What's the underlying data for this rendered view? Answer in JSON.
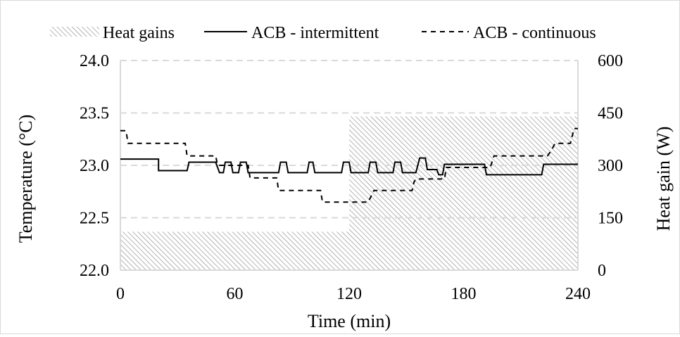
{
  "chart_data": {
    "type": "line",
    "legend_position": "top",
    "grid": "horizontal dashed",
    "x": {
      "label": "Time (min)",
      "range": [
        0,
        240
      ],
      "ticks": [
        "0",
        "60",
        "120",
        "180",
        "240"
      ],
      "tick_values": [
        0,
        60,
        120,
        180,
        240
      ]
    },
    "y_left": {
      "label": "Temperature (°C)",
      "range": [
        22.0,
        24.0
      ],
      "ticks": [
        "22.0",
        "22.5",
        "23.0",
        "23.5",
        "24.0"
      ],
      "tick_values": [
        22.0,
        22.5,
        23.0,
        23.5,
        24.0
      ]
    },
    "y_right": {
      "label": "Heat gain (W)",
      "range": [
        0,
        600
      ],
      "ticks": [
        "0",
        "150",
        "300",
        "450",
        "600"
      ],
      "tick_values": [
        0,
        150,
        300,
        450,
        600
      ]
    },
    "colors": {
      "gridline": "#d9d9d9",
      "hatch_line": "#8c8c8c",
      "series": "#000000"
    },
    "series": [
      {
        "name": "Heat gains",
        "style": "hatched-area",
        "axis": "right",
        "points": [
          [
            0,
            110
          ],
          [
            120,
            110
          ],
          [
            120,
            440
          ],
          [
            240,
            440
          ]
        ]
      },
      {
        "name": "ACB - intermittent",
        "style": "solid",
        "axis": "left",
        "points": [
          [
            0,
            23.06
          ],
          [
            20,
            23.06
          ],
          [
            20,
            22.95
          ],
          [
            35,
            22.95
          ],
          [
            36,
            23.03
          ],
          [
            50,
            23.03
          ],
          [
            52,
            22.93
          ],
          [
            54,
            22.93
          ],
          [
            55,
            23.03
          ],
          [
            58,
            23.03
          ],
          [
            59,
            22.93
          ],
          [
            62,
            22.93
          ],
          [
            63,
            23.03
          ],
          [
            66,
            23.03
          ],
          [
            67,
            22.93
          ],
          [
            83,
            22.93
          ],
          [
            84,
            23.03
          ],
          [
            87,
            23.03
          ],
          [
            88,
            22.93
          ],
          [
            98,
            22.93
          ],
          [
            99,
            23.03
          ],
          [
            101,
            23.03
          ],
          [
            102,
            22.93
          ],
          [
            116,
            22.93
          ],
          [
            117,
            23.03
          ],
          [
            120,
            23.03
          ],
          [
            121,
            22.93
          ],
          [
            130,
            22.93
          ],
          [
            131,
            23.03
          ],
          [
            134,
            23.03
          ],
          [
            135,
            22.93
          ],
          [
            143,
            22.93
          ],
          [
            144,
            23.03
          ],
          [
            147,
            23.03
          ],
          [
            148,
            22.93
          ],
          [
            155,
            22.93
          ],
          [
            157,
            23.07
          ],
          [
            160,
            23.07
          ],
          [
            161,
            22.96
          ],
          [
            166,
            22.96
          ],
          [
            167,
            22.91
          ],
          [
            169,
            22.91
          ],
          [
            170,
            23.01
          ],
          [
            191,
            23.01
          ],
          [
            192,
            22.91
          ],
          [
            221,
            22.91
          ],
          [
            222,
            23.01
          ],
          [
            240,
            23.01
          ]
        ]
      },
      {
        "name": "ACB - continuous",
        "style": "dashed",
        "axis": "left",
        "points": [
          [
            0,
            23.33
          ],
          [
            3,
            23.33
          ],
          [
            4,
            23.21
          ],
          [
            34,
            23.21
          ],
          [
            35,
            23.09
          ],
          [
            50,
            23.09
          ],
          [
            51,
            23.0
          ],
          [
            67,
            23.0
          ],
          [
            68,
            22.88
          ],
          [
            82,
            22.88
          ],
          [
            83,
            22.76
          ],
          [
            105,
            22.76
          ],
          [
            106,
            22.65
          ],
          [
            130,
            22.65
          ],
          [
            133,
            22.76
          ],
          [
            153,
            22.76
          ],
          [
            154,
            22.84
          ],
          [
            155,
            22.87
          ],
          [
            170,
            22.87
          ],
          [
            171,
            22.98
          ],
          [
            194,
            22.98
          ],
          [
            196,
            23.09
          ],
          [
            224,
            23.09
          ],
          [
            226,
            23.14
          ],
          [
            228,
            23.21
          ],
          [
            236,
            23.21
          ],
          [
            238,
            23.35
          ],
          [
            240,
            23.35
          ]
        ]
      }
    ]
  }
}
